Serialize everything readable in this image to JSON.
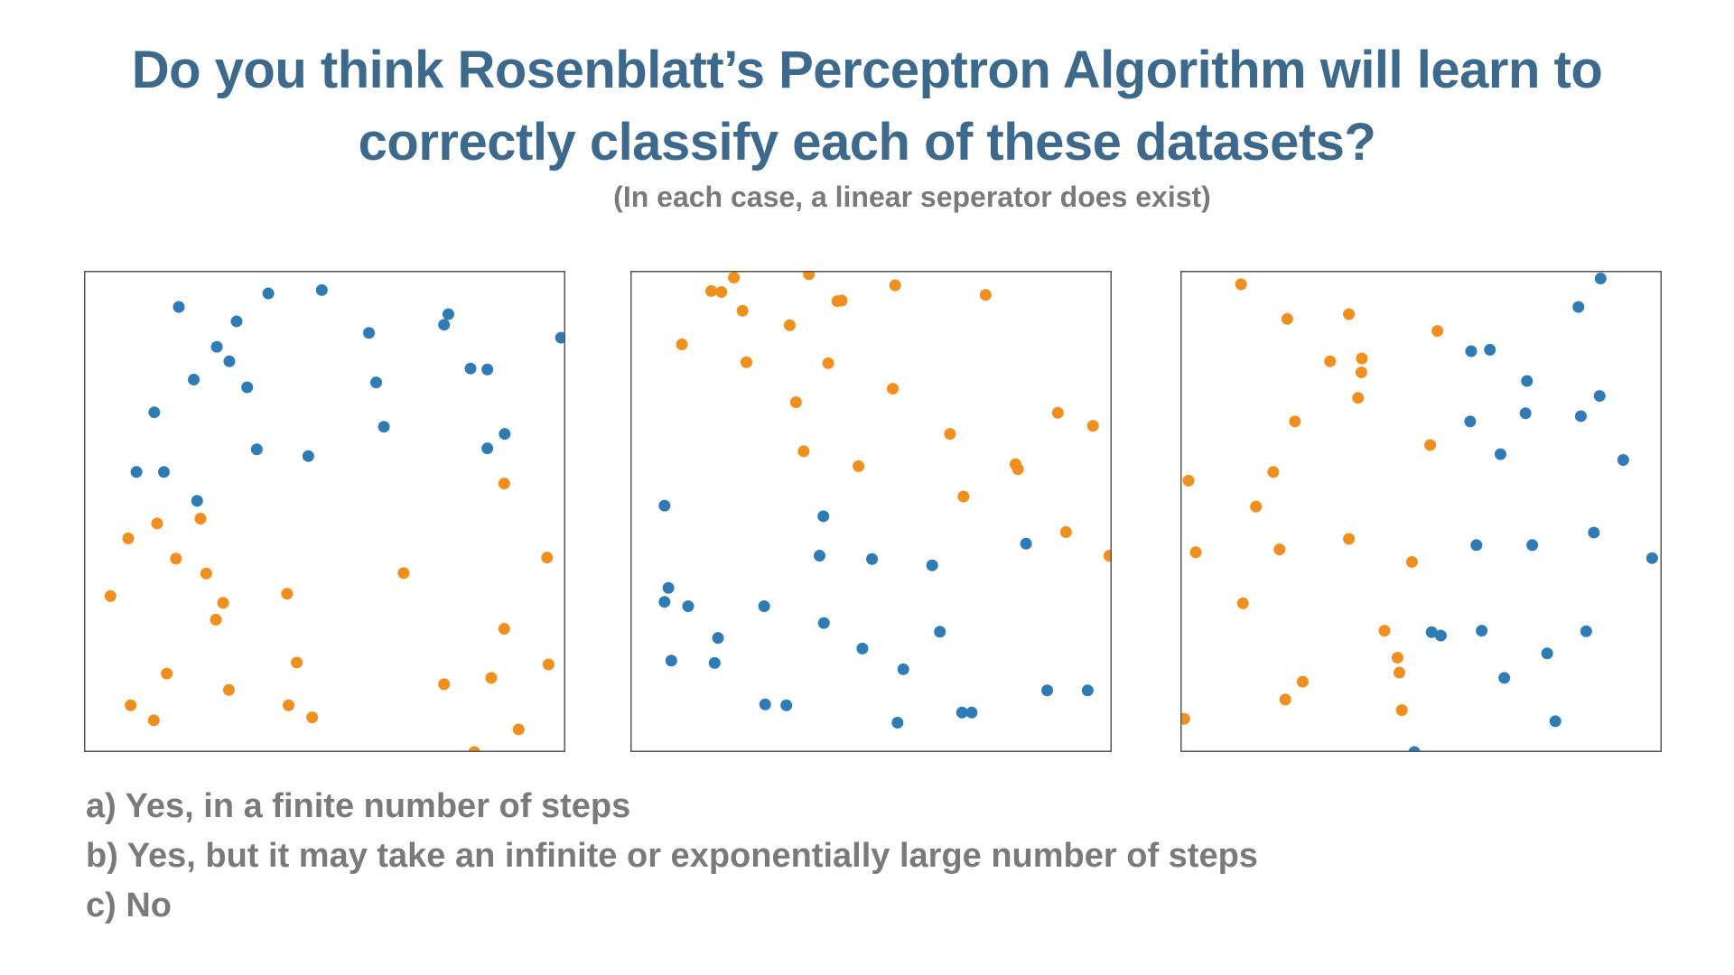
{
  "title": {
    "line1": "Do you think Rosenblatt’s Perceptron Algorithm will learn to",
    "line2": "correctly classify each of these datasets?"
  },
  "subtitle": "(In each case, a linear seperator does exist)",
  "options": [
    "a) Yes, in a finite number of steps",
    "b) Yes, but it may take an infinite or exponentially large number of steps",
    "c) No"
  ],
  "colors": {
    "title": "#3d6a8c",
    "text": "#7a7a7a",
    "class_blue": "#2f7bb6",
    "class_orange": "#f08f1e",
    "frame": "#555555"
  },
  "chart_data": [
    {
      "type": "scatter",
      "title": "",
      "xlabel": "",
      "ylabel": "",
      "xlim": [
        0,
        1
      ],
      "ylim": [
        0,
        1
      ],
      "grid": false,
      "series": [
        {
          "color": "blue",
          "points": [
            [
              0.197,
              0.925
            ],
            [
              0.383,
              0.953
            ],
            [
              0.494,
              0.96
            ],
            [
              0.317,
              0.895
            ],
            [
              0.592,
              0.871
            ],
            [
              0.757,
              0.91
            ],
            [
              0.748,
              0.888
            ],
            [
              0.991,
              0.861
            ],
            [
              0.276,
              0.842
            ],
            [
              0.302,
              0.812
            ],
            [
              0.803,
              0.797
            ],
            [
              0.838,
              0.795
            ],
            [
              0.228,
              0.774
            ],
            [
              0.339,
              0.758
            ],
            [
              0.607,
              0.768
            ],
            [
              0.146,
              0.706
            ],
            [
              0.623,
              0.676
            ],
            [
              0.874,
              0.661
            ],
            [
              0.359,
              0.629
            ],
            [
              0.466,
              0.615
            ],
            [
              0.838,
              0.631
            ],
            [
              0.109,
              0.582
            ],
            [
              0.166,
              0.582
            ],
            [
              0.235,
              0.522
            ]
          ]
        },
        {
          "color": "orange",
          "points": [
            [
              0.873,
              0.558
            ],
            [
              0.242,
              0.485
            ],
            [
              0.152,
              0.475
            ],
            [
              0.092,
              0.444
            ],
            [
              0.191,
              0.402
            ],
            [
              0.962,
              0.404
            ],
            [
              0.664,
              0.372
            ],
            [
              0.254,
              0.371
            ],
            [
              0.055,
              0.324
            ],
            [
              0.422,
              0.329
            ],
            [
              0.289,
              0.31
            ],
            [
              0.274,
              0.275
            ],
            [
              0.873,
              0.256
            ],
            [
              0.442,
              0.186
            ],
            [
              0.965,
              0.182
            ],
            [
              0.172,
              0.163
            ],
            [
              0.846,
              0.154
            ],
            [
              0.748,
              0.141
            ],
            [
              0.301,
              0.129
            ],
            [
              0.097,
              0.097
            ],
            [
              0.425,
              0.097
            ],
            [
              0.474,
              0.072
            ],
            [
              0.145,
              0.066
            ],
            [
              0.903,
              0.047
            ],
            [
              0.811,
              0.0
            ]
          ]
        }
      ]
    },
    {
      "type": "scatter",
      "title": "",
      "xlabel": "",
      "ylabel": "",
      "xlim": [
        0,
        1
      ],
      "ylim": [
        0,
        1
      ],
      "grid": false,
      "series": [
        {
          "color": "orange",
          "points": [
            [
              0.215,
              0.986
            ],
            [
              0.371,
              0.993
            ],
            [
              0.168,
              0.958
            ],
            [
              0.189,
              0.956
            ],
            [
              0.43,
              0.937
            ],
            [
              0.439,
              0.938
            ],
            [
              0.55,
              0.97
            ],
            [
              0.233,
              0.917
            ],
            [
              0.738,
              0.95
            ],
            [
              0.331,
              0.887
            ],
            [
              0.107,
              0.847
            ],
            [
              0.241,
              0.81
            ],
            [
              0.411,
              0.808
            ],
            [
              0.545,
              0.755
            ],
            [
              0.344,
              0.727
            ],
            [
              0.888,
              0.705
            ],
            [
              0.961,
              0.678
            ],
            [
              0.664,
              0.661
            ],
            [
              0.36,
              0.625
            ],
            [
              0.474,
              0.594
            ],
            [
              0.8,
              0.598
            ],
            [
              0.805,
              0.588
            ],
            [
              0.692,
              0.531
            ],
            [
              0.905,
              0.457
            ],
            [
              0.995,
              0.408
            ]
          ]
        },
        {
          "color": "blue",
          "points": [
            [
              0.071,
              0.512
            ],
            [
              0.401,
              0.49
            ],
            [
              0.822,
              0.433
            ],
            [
              0.393,
              0.408
            ],
            [
              0.502,
              0.401
            ],
            [
              0.627,
              0.388
            ],
            [
              0.079,
              0.341
            ],
            [
              0.071,
              0.312
            ],
            [
              0.12,
              0.303
            ],
            [
              0.278,
              0.303
            ],
            [
              0.402,
              0.268
            ],
            [
              0.643,
              0.25
            ],
            [
              0.182,
              0.237
            ],
            [
              0.482,
              0.215
            ],
            [
              0.085,
              0.19
            ],
            [
              0.175,
              0.185
            ],
            [
              0.567,
              0.172
            ],
            [
              0.866,
              0.128
            ],
            [
              0.95,
              0.128
            ],
            [
              0.28,
              0.099
            ],
            [
              0.324,
              0.097
            ],
            [
              0.689,
              0.082
            ],
            [
              0.709,
              0.082
            ],
            [
              0.555,
              0.061
            ]
          ]
        }
      ]
    },
    {
      "type": "scatter",
      "title": "",
      "xlabel": "",
      "ylabel": "",
      "xlim": [
        0,
        1
      ],
      "ylim": [
        0,
        1
      ],
      "grid": false,
      "series": [
        {
          "color": "blue",
          "points": [
            [
              0.873,
              0.984
            ],
            [
              0.827,
              0.925
            ],
            [
              0.604,
              0.833
            ],
            [
              0.643,
              0.836
            ],
            [
              0.72,
              0.771
            ],
            [
              0.871,
              0.74
            ],
            [
              0.602,
              0.687
            ],
            [
              0.717,
              0.704
            ],
            [
              0.832,
              0.698
            ],
            [
              0.665,
              0.619
            ],
            [
              0.92,
              0.607
            ],
            [
              0.615,
              0.43
            ],
            [
              0.731,
              0.43
            ],
            [
              0.859,
              0.456
            ],
            [
              0.98,
              0.403
            ],
            [
              0.522,
              0.249
            ],
            [
              0.541,
              0.242
            ],
            [
              0.626,
              0.252
            ],
            [
              0.762,
              0.205
            ],
            [
              0.843,
              0.251
            ],
            [
              0.673,
              0.154
            ],
            [
              0.779,
              0.064
            ],
            [
              0.486,
              0.0
            ]
          ]
        },
        {
          "color": "orange",
          "points": [
            [
              0.126,
              0.972
            ],
            [
              0.222,
              0.9
            ],
            [
              0.35,
              0.91
            ],
            [
              0.534,
              0.875
            ],
            [
              0.311,
              0.812
            ],
            [
              0.377,
              0.818
            ],
            [
              0.376,
              0.789
            ],
            [
              0.369,
              0.736
            ],
            [
              0.238,
              0.687
            ],
            [
              0.519,
              0.638
            ],
            [
              0.193,
              0.582
            ],
            [
              0.017,
              0.564
            ],
            [
              0.157,
              0.51
            ],
            [
              0.032,
              0.415
            ],
            [
              0.206,
              0.421
            ],
            [
              0.35,
              0.443
            ],
            [
              0.481,
              0.395
            ],
            [
              0.13,
              0.309
            ],
            [
              0.424,
              0.252
            ],
            [
              0.451,
              0.196
            ],
            [
              0.455,
              0.165
            ],
            [
              0.254,
              0.146
            ],
            [
              0.218,
              0.109
            ],
            [
              0.46,
              0.087
            ],
            [
              0.008,
              0.069
            ]
          ]
        }
      ]
    }
  ]
}
